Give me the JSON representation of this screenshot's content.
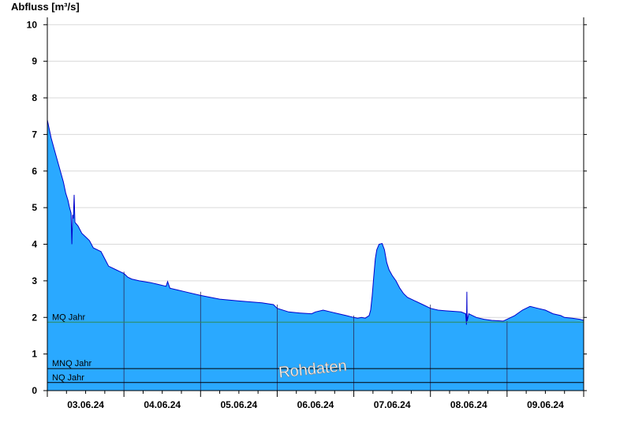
{
  "chart_data": {
    "type": "area",
    "ylabel": "Abfluss [m³/s]",
    "ylim": [
      0,
      10.2
    ],
    "yticks": [
      0,
      1,
      2,
      3,
      4,
      5,
      6,
      7,
      8,
      9,
      10
    ],
    "xlim": [
      0,
      7
    ],
    "x_unit": "days since 02.06.24 12:00",
    "xticks": [
      {
        "x": 0.5,
        "label": "03.06.24"
      },
      {
        "x": 1.5,
        "label": "04.06.24"
      },
      {
        "x": 2.5,
        "label": "05.06.24"
      },
      {
        "x": 3.5,
        "label": "06.06.24"
      },
      {
        "x": 4.5,
        "label": "07.06.24"
      },
      {
        "x": 5.5,
        "label": "08.06.24"
      },
      {
        "x": 6.5,
        "label": "09.06.24"
      }
    ],
    "day_boundaries": [
      1,
      2,
      3,
      4,
      5,
      6
    ],
    "grid": true,
    "series": [
      {
        "name": "Abfluss",
        "fill": "#2aa9ff",
        "line": "#0000cc",
        "points": [
          [
            0.0,
            7.4
          ],
          [
            0.02,
            7.2
          ],
          [
            0.05,
            6.9
          ],
          [
            0.09,
            6.6
          ],
          [
            0.13,
            6.3
          ],
          [
            0.17,
            6.0
          ],
          [
            0.21,
            5.7
          ],
          [
            0.24,
            5.4
          ],
          [
            0.27,
            5.2
          ],
          [
            0.29,
            5.0
          ],
          [
            0.31,
            4.85
          ],
          [
            0.32,
            4.0
          ],
          [
            0.33,
            4.8
          ],
          [
            0.34,
            4.7
          ],
          [
            0.35,
            5.35
          ],
          [
            0.36,
            4.6
          ],
          [
            0.4,
            4.5
          ],
          [
            0.45,
            4.3
          ],
          [
            0.5,
            4.2
          ],
          [
            0.55,
            4.1
          ],
          [
            0.6,
            3.9
          ],
          [
            0.7,
            3.8
          ],
          [
            0.75,
            3.6
          ],
          [
            0.8,
            3.4
          ],
          [
            0.9,
            3.3
          ],
          [
            0.95,
            3.25
          ],
          [
            1.0,
            3.2
          ],
          [
            1.05,
            3.1
          ],
          [
            1.1,
            3.05
          ],
          [
            1.2,
            3.0
          ],
          [
            1.35,
            2.95
          ],
          [
            1.45,
            2.9
          ],
          [
            1.55,
            2.85
          ],
          [
            1.57,
            2.98
          ],
          [
            1.6,
            2.8
          ],
          [
            1.7,
            2.75
          ],
          [
            1.8,
            2.7
          ],
          [
            2.0,
            2.6
          ],
          [
            2.25,
            2.5
          ],
          [
            2.5,
            2.45
          ],
          [
            2.8,
            2.4
          ],
          [
            2.95,
            2.35
          ],
          [
            3.0,
            2.25
          ],
          [
            3.15,
            2.15
          ],
          [
            3.3,
            2.12
          ],
          [
            3.45,
            2.1
          ],
          [
            3.5,
            2.15
          ],
          [
            3.6,
            2.2
          ],
          [
            3.7,
            2.15
          ],
          [
            3.8,
            2.1
          ],
          [
            3.9,
            2.05
          ],
          [
            4.0,
            2.0
          ],
          [
            4.05,
            1.98
          ],
          [
            4.1,
            2.0
          ],
          [
            4.15,
            1.98
          ],
          [
            4.2,
            2.05
          ],
          [
            4.22,
            2.2
          ],
          [
            4.24,
            2.6
          ],
          [
            4.26,
            3.1
          ],
          [
            4.28,
            3.6
          ],
          [
            4.3,
            3.85
          ],
          [
            4.33,
            4.0
          ],
          [
            4.37,
            4.02
          ],
          [
            4.4,
            3.85
          ],
          [
            4.43,
            3.5
          ],
          [
            4.46,
            3.3
          ],
          [
            4.5,
            3.15
          ],
          [
            4.55,
            3.0
          ],
          [
            4.6,
            2.8
          ],
          [
            4.65,
            2.65
          ],
          [
            4.7,
            2.55
          ],
          [
            4.8,
            2.45
          ],
          [
            4.9,
            2.35
          ],
          [
            5.0,
            2.25
          ],
          [
            5.1,
            2.2
          ],
          [
            5.2,
            2.18
          ],
          [
            5.4,
            2.15
          ],
          [
            5.46,
            2.1
          ],
          [
            5.47,
            1.8
          ],
          [
            5.475,
            2.7
          ],
          [
            5.48,
            1.9
          ],
          [
            5.5,
            2.1
          ],
          [
            5.55,
            2.05
          ],
          [
            5.6,
            2.0
          ],
          [
            5.7,
            1.95
          ],
          [
            5.8,
            1.92
          ],
          [
            5.95,
            1.9
          ],
          [
            6.0,
            1.95
          ],
          [
            6.1,
            2.05
          ],
          [
            6.2,
            2.2
          ],
          [
            6.3,
            2.3
          ],
          [
            6.4,
            2.25
          ],
          [
            6.5,
            2.2
          ],
          [
            6.6,
            2.1
          ],
          [
            6.7,
            2.05
          ],
          [
            6.75,
            2.0
          ],
          [
            6.85,
            1.98
          ],
          [
            6.95,
            1.95
          ],
          [
            7.0,
            1.92
          ]
        ]
      }
    ],
    "reference_lines": [
      {
        "name": "MQ Jahr",
        "value": 1.87,
        "color": "#2e8b57"
      },
      {
        "name": "MNQ Jahr",
        "value": 0.6,
        "color": "#000000"
      },
      {
        "name": "NQ Jahr",
        "value": 0.22,
        "color": "#000000"
      }
    ],
    "watermark": "Rohdaten",
    "colors": {
      "grid": "#d9d9d9",
      "axis": "#000000",
      "day_line": "#2a2a5a"
    }
  }
}
